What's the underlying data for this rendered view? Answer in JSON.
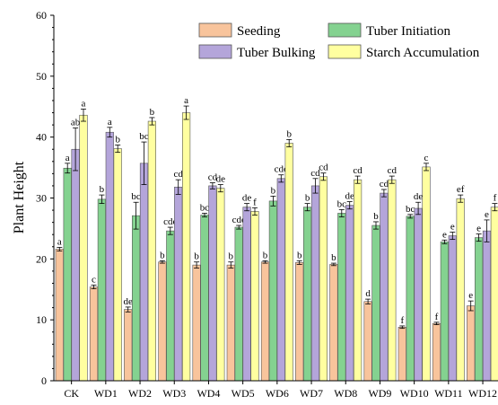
{
  "chart_data": {
    "type": "bar",
    "ylabel": "Plant Height",
    "xlabel": "",
    "ylim": [
      0,
      60
    ],
    "yticks": [
      0,
      10,
      20,
      30,
      40,
      50,
      60
    ],
    "grid": false,
    "legend_position": "top-right",
    "categories": [
      "CK",
      "WD1",
      "WD2",
      "WD3",
      "WD4",
      "WD5",
      "WD6",
      "WD7",
      "WD8",
      "WD9",
      "WD10",
      "WD11",
      "WD12"
    ],
    "series": [
      {
        "name": "Seeding",
        "color": "#F8C49C",
        "values": [
          21.6,
          15.4,
          11.7,
          19.5,
          19.0,
          19.0,
          19.5,
          19.4,
          19.1,
          13.0,
          8.8,
          9.4,
          12.3
        ],
        "errors": [
          0.3,
          0.3,
          0.4,
          0.2,
          0.5,
          0.5,
          0.2,
          0.3,
          0.2,
          0.4,
          0.2,
          0.2,
          0.8
        ],
        "labels": [
          "a",
          "c",
          "de",
          "b",
          "b",
          "b",
          "b",
          "b",
          "b",
          "d",
          "f",
          "f",
          "e"
        ]
      },
      {
        "name": "Tuber Initiation",
        "color": "#84D290",
        "values": [
          34.9,
          29.8,
          27.1,
          24.6,
          27.2,
          25.2,
          29.5,
          28.5,
          27.5,
          25.5,
          27.0,
          22.8,
          23.5
        ],
        "errors": [
          0.8,
          0.7,
          2.2,
          0.6,
          0.3,
          0.3,
          0.8,
          0.6,
          0.6,
          0.6,
          0.3,
          0.3,
          0.6
        ],
        "labels": [
          "a",
          "b",
          "bc",
          "cde",
          "bc",
          "cde",
          "b",
          "b",
          "bc",
          "b",
          "bc",
          "e",
          "e"
        ]
      },
      {
        "name": "Tuber Bulking",
        "color": "#B4A5DA",
        "values": [
          38.0,
          40.8,
          35.7,
          31.8,
          32.0,
          28.5,
          33.2,
          32.0,
          28.8,
          30.8,
          28.3,
          23.8,
          24.6
        ],
        "errors": [
          3.5,
          0.8,
          3.5,
          1.2,
          0.5,
          0.6,
          0.6,
          1.2,
          0.6,
          0.6,
          1.0,
          0.6,
          1.8
        ],
        "labels": [
          "ab",
          "a",
          "bc",
          "cd",
          "cd",
          "de",
          "cde",
          "cd",
          "de",
          "cd",
          "de",
          "e",
          "e"
        ]
      },
      {
        "name": "Starch Accumulation",
        "color": "#FFFFA0",
        "values": [
          43.6,
          38.1,
          42.6,
          44.0,
          31.6,
          27.8,
          39.0,
          33.5,
          33.0,
          33.0,
          35.1,
          29.9,
          28.5
        ],
        "errors": [
          1.0,
          0.6,
          0.6,
          1.1,
          0.6,
          0.6,
          0.6,
          0.6,
          0.6,
          0.6,
          0.6,
          0.6,
          0.6
        ],
        "labels": [
          "a",
          "b",
          "b",
          "a",
          "de",
          "f",
          "b",
          "cd",
          "cd",
          "cd",
          "c",
          "ef",
          "f"
        ]
      }
    ]
  }
}
